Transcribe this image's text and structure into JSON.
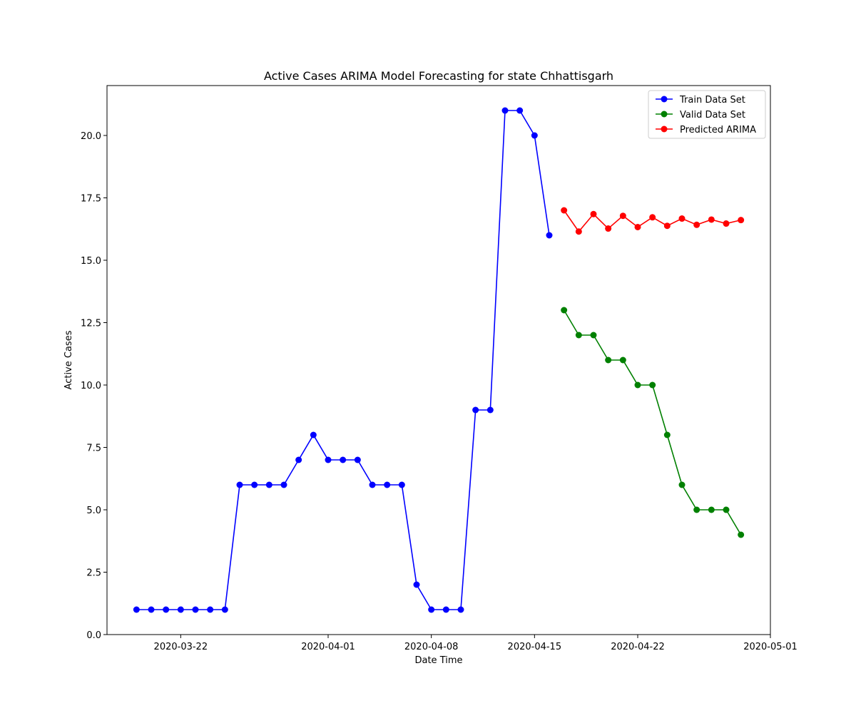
{
  "chart_data": {
    "type": "line",
    "title": "Active Cases ARIMA Model Forecasting for state Chhattisgarh",
    "xlabel": "Date Time",
    "ylabel": "Active Cases",
    "xlim": [
      "2020-03-17",
      "2020-05-01"
    ],
    "ylim": [
      0,
      22
    ],
    "x_ticks": [
      "2020-03-22",
      "2020-04-01",
      "2020-04-08",
      "2020-04-15",
      "2020-04-22",
      "2020-05-01"
    ],
    "y_ticks": [
      "0.0",
      "2.5",
      "5.0",
      "7.5",
      "10.0",
      "12.5",
      "15.0",
      "17.5",
      "20.0"
    ],
    "grid": false,
    "legend_position": "top-right",
    "series": [
      {
        "name": "Train Data Set",
        "color": "#0000ff",
        "x": [
          "2020-03-19",
          "2020-03-20",
          "2020-03-21",
          "2020-03-22",
          "2020-03-23",
          "2020-03-24",
          "2020-03-25",
          "2020-03-26",
          "2020-03-27",
          "2020-03-28",
          "2020-03-29",
          "2020-03-30",
          "2020-03-31",
          "2020-04-01",
          "2020-04-02",
          "2020-04-03",
          "2020-04-04",
          "2020-04-05",
          "2020-04-06",
          "2020-04-07",
          "2020-04-08",
          "2020-04-09",
          "2020-04-10",
          "2020-04-11",
          "2020-04-12",
          "2020-04-13",
          "2020-04-14",
          "2020-04-15",
          "2020-04-16"
        ],
        "values": [
          1,
          1,
          1,
          1,
          1,
          1,
          1,
          6,
          6,
          6,
          6,
          7,
          8,
          7,
          7,
          7,
          6,
          6,
          6,
          2,
          1,
          1,
          1,
          9,
          9,
          21,
          21,
          20,
          16
        ]
      },
      {
        "name": "Valid Data Set",
        "color": "#008000",
        "x": [
          "2020-04-17",
          "2020-04-18",
          "2020-04-19",
          "2020-04-20",
          "2020-04-21",
          "2020-04-22",
          "2020-04-23",
          "2020-04-24",
          "2020-04-25",
          "2020-04-26",
          "2020-04-27",
          "2020-04-28",
          "2020-04-29"
        ],
        "values": [
          13,
          12,
          12,
          11,
          11,
          10,
          10,
          8,
          6,
          5,
          5,
          5,
          4
        ]
      },
      {
        "name": "Predicted ARIMA",
        "color": "#ff0000",
        "x": [
          "2020-04-17",
          "2020-04-18",
          "2020-04-19",
          "2020-04-20",
          "2020-04-21",
          "2020-04-22",
          "2020-04-23",
          "2020-04-24",
          "2020-04-25",
          "2020-04-26",
          "2020-04-27",
          "2020-04-28",
          "2020-04-29"
        ],
        "values": [
          17.0,
          16.15,
          16.85,
          16.27,
          16.78,
          16.33,
          16.72,
          16.38,
          16.67,
          16.42,
          16.63,
          16.47,
          16.61
        ]
      }
    ]
  }
}
